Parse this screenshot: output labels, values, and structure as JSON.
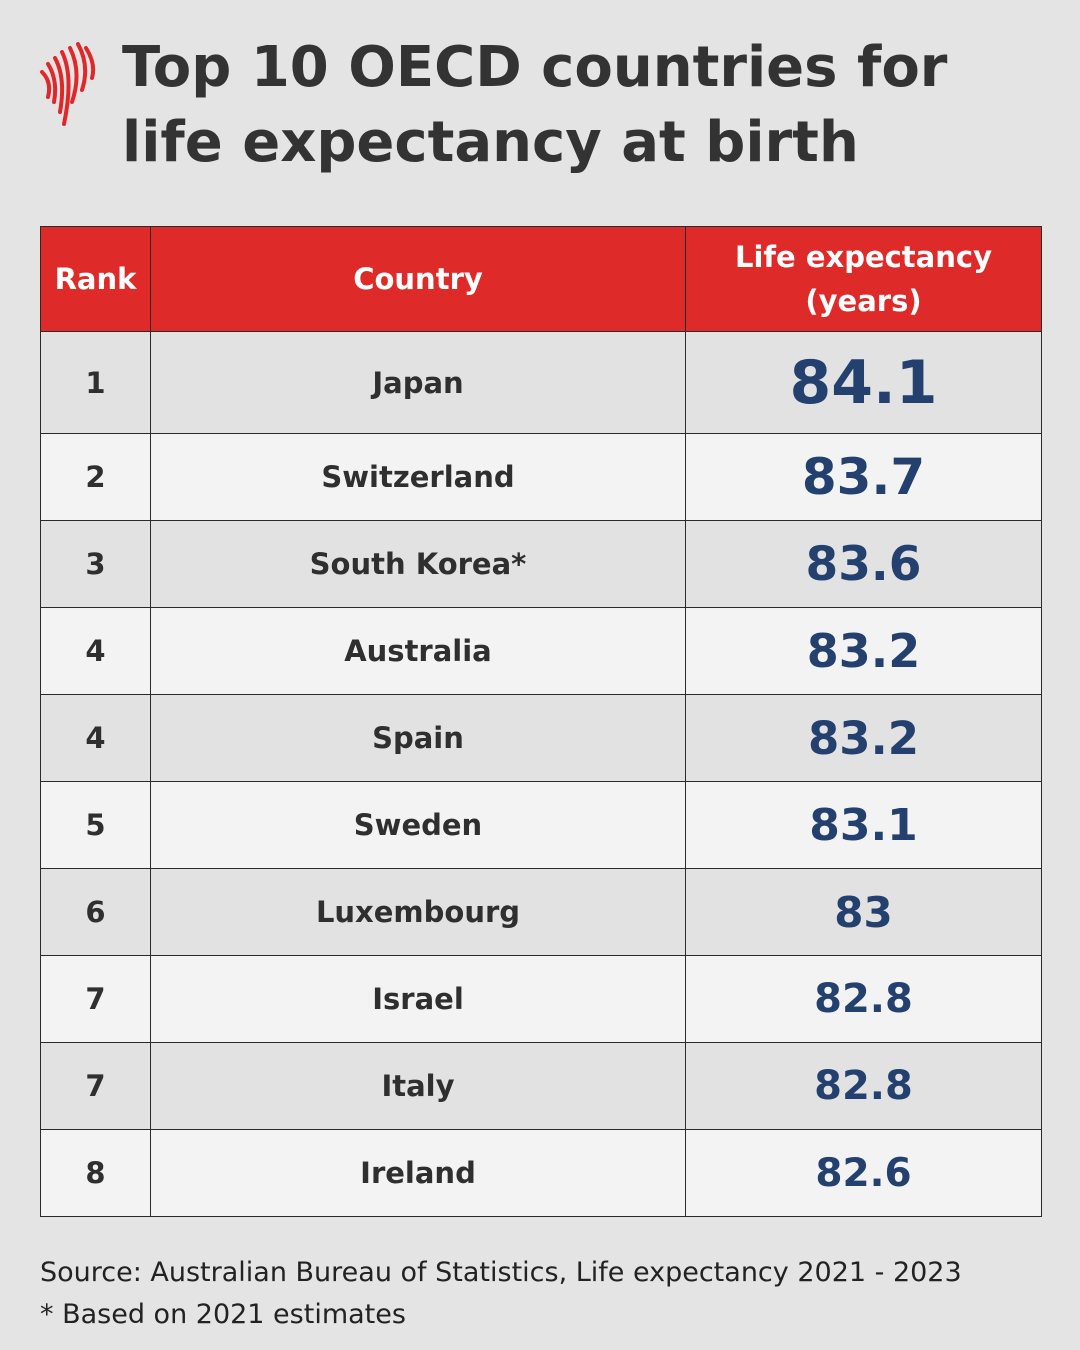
{
  "header": {
    "title": "Top 10 OECD countries for life expectancy at birth"
  },
  "table": {
    "columns": [
      "Rank",
      "Country",
      "Life expectancy (years)"
    ],
    "rows": [
      [
        "1",
        "Japan",
        "84.1"
      ],
      [
        "2",
        "Switzerland",
        "83.7"
      ],
      [
        "3",
        "South Korea*",
        "83.6"
      ],
      [
        "4",
        "Australia",
        "83.2"
      ],
      [
        "4",
        "Spain",
        "83.2"
      ],
      [
        "5",
        "Sweden",
        "83.1"
      ],
      [
        "6",
        "Luxembourg",
        "83"
      ],
      [
        "7",
        "Israel",
        "82.8"
      ],
      [
        "7",
        "Italy",
        "82.8"
      ],
      [
        "8",
        "Ireland",
        "82.6"
      ]
    ]
  },
  "footer": {
    "source": "Source: Australian Bureau of Statistics, Life expectancy 2021 - 2023",
    "note": "* Based on 2021 estimates"
  }
}
